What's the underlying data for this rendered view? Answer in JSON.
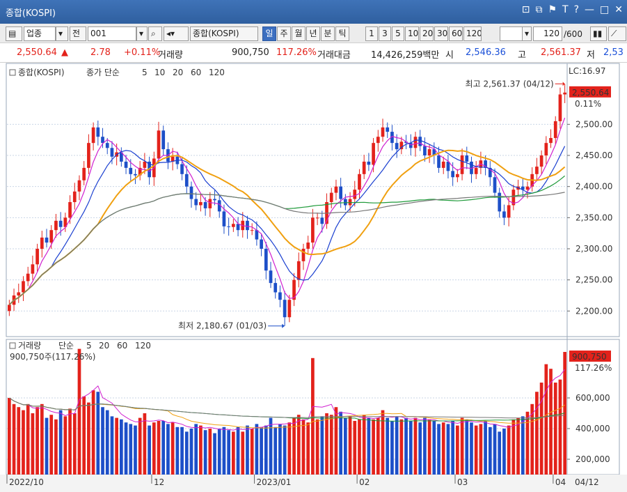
{
  "window": {
    "title": "종합(KOSPI)",
    "buttons": [
      "⊡",
      "⧉",
      "⚑",
      "T",
      "?",
      "—",
      "□",
      "✕"
    ]
  },
  "toolbar": {
    "market": "업종",
    "prev_label": "전",
    "code": "001",
    "name": "종합(KOSPI)",
    "periods": [
      "일",
      "주",
      "월",
      "년",
      "분",
      "틱"
    ],
    "active_period": "일",
    "intervals": [
      "1",
      "3",
      "5",
      "10",
      "20",
      "30",
      "60",
      "120"
    ],
    "count": "120",
    "count_max": "/600"
  },
  "quote": {
    "price": "2,550.64",
    "arrow": "▲",
    "change": "2.78",
    "change_pct": "+0.11%",
    "volume_label": "거래량",
    "volume": "900,750",
    "volume_ratio": "117.26%",
    "amount_label": "거래대금",
    "amount": "14,426,259백만",
    "open_label": "시",
    "open": "2,546.36",
    "high_label": "고",
    "high": "2,561.37",
    "low_label": "저",
    "low": "2,53"
  },
  "colors": {
    "up": "#e3221b",
    "down": "#1d4fc8",
    "ma5": "#d020d0",
    "ma10": "#1a3fd0",
    "ma20": "#f0a010",
    "ma60": "#1f9a3a",
    "ma120": "#777777",
    "grid": "#c9d6e6"
  },
  "chart_data": [
    {
      "type": "candlestick",
      "title": "종합(KOSPI)",
      "legend": {
        "label": "종가 단순",
        "periods": [
          "5",
          "10",
          "20",
          "60",
          "120"
        ]
      },
      "ylim": [
        2160,
        2590
      ],
      "y_ticks": [
        2200,
        2250,
        2300,
        2350,
        2400,
        2450,
        2500
      ],
      "y_tick_labels": [
        "2,200.00",
        "2,250.00",
        "2,300.00",
        "2,350.00",
        "2,400.00",
        "2,450.00",
        "2,500.00"
      ],
      "last_price_label": "2,550.64",
      "last_pct_label": "0.11%",
      "lc_label": "LC:16.97",
      "annotations": {
        "high": "최고 2,561.37 (04/12)",
        "low": "최저 2,180.67 (01/03)"
      },
      "close": [
        2210,
        2225,
        2230,
        2248,
        2260,
        2275,
        2300,
        2318,
        2310,
        2330,
        2345,
        2335,
        2350,
        2375,
        2392,
        2410,
        2430,
        2470,
        2495,
        2480,
        2470,
        2462,
        2448,
        2455,
        2440,
        2430,
        2420,
        2418,
        2430,
        2440,
        2415,
        2445,
        2490,
        2460,
        2440,
        2448,
        2436,
        2420,
        2400,
        2380,
        2370,
        2375,
        2365,
        2380,
        2378,
        2360,
        2336,
        2335,
        2340,
        2330,
        2345,
        2330,
        2330,
        2315,
        2300,
        2265,
        2245,
        2230,
        2218,
        2190,
        2218,
        2250,
        2280,
        2300,
        2310,
        2350,
        2350,
        2340,
        2375,
        2390,
        2400,
        2380,
        2370,
        2380,
        2395,
        2420,
        2440,
        2435,
        2470,
        2480,
        2495,
        2488,
        2470,
        2460,
        2472,
        2470,
        2462,
        2480,
        2465,
        2450,
        2460,
        2450,
        2430,
        2440,
        2425,
        2415,
        2420,
        2450,
        2440,
        2420,
        2430,
        2442,
        2430,
        2415,
        2390,
        2360,
        2350,
        2370,
        2395,
        2400,
        2395,
        2400,
        2420,
        2432,
        2450,
        2470,
        2478,
        2505,
        2548,
        2551
      ]
    },
    {
      "type": "bar",
      "title": "거래량",
      "legend": {
        "label": "단순",
        "periods": [
          "5",
          "20",
          "60",
          "120"
        ]
      },
      "volume_label": "900,750주(117.26%)",
      "last_volume_label": "900,750",
      "last_pct_label": "117.26%",
      "ylim": [
        100000,
        950000
      ],
      "y_ticks": [
        200000,
        400000,
        600000
      ],
      "y_tick_labels": [
        "200,000",
        "400,000",
        "600,000"
      ],
      "values": [
        600,
        560,
        540,
        520,
        560,
        500,
        540,
        560,
        470,
        490,
        460,
        520,
        480,
        530,
        500,
        920,
        610,
        570,
        650,
        640,
        540,
        520,
        480,
        470,
        460,
        440,
        430,
        420,
        470,
        500,
        420,
        440,
        450,
        450,
        430,
        440,
        410,
        410,
        380,
        400,
        430,
        420,
        390,
        400,
        370,
        400,
        410,
        390,
        380,
        410,
        380,
        420,
        400,
        430,
        410,
        420,
        470,
        410,
        430,
        420,
        440,
        470,
        490,
        460,
        440,
        860,
        460,
        480,
        500,
        490,
        540,
        510,
        470,
        480,
        450,
        460,
        490,
        470,
        460,
        470,
        520,
        470,
        450,
        480,
        460,
        470,
        450,
        470,
        440,
        470,
        460,
        450,
        430,
        440,
        430,
        450,
        420,
        470,
        460,
        440,
        420,
        430,
        450,
        410,
        430,
        380,
        400,
        420,
        460,
        470,
        480,
        510,
        560,
        640,
        700,
        820,
        790,
        700,
        720,
        900
      ],
      "x_labels": [
        "2022/10",
        "12",
        "2023/01",
        "02",
        "03",
        "04"
      ],
      "x_label_index": [
        0,
        31,
        53,
        75,
        96,
        117
      ],
      "x_end_label": "04/12"
    }
  ]
}
